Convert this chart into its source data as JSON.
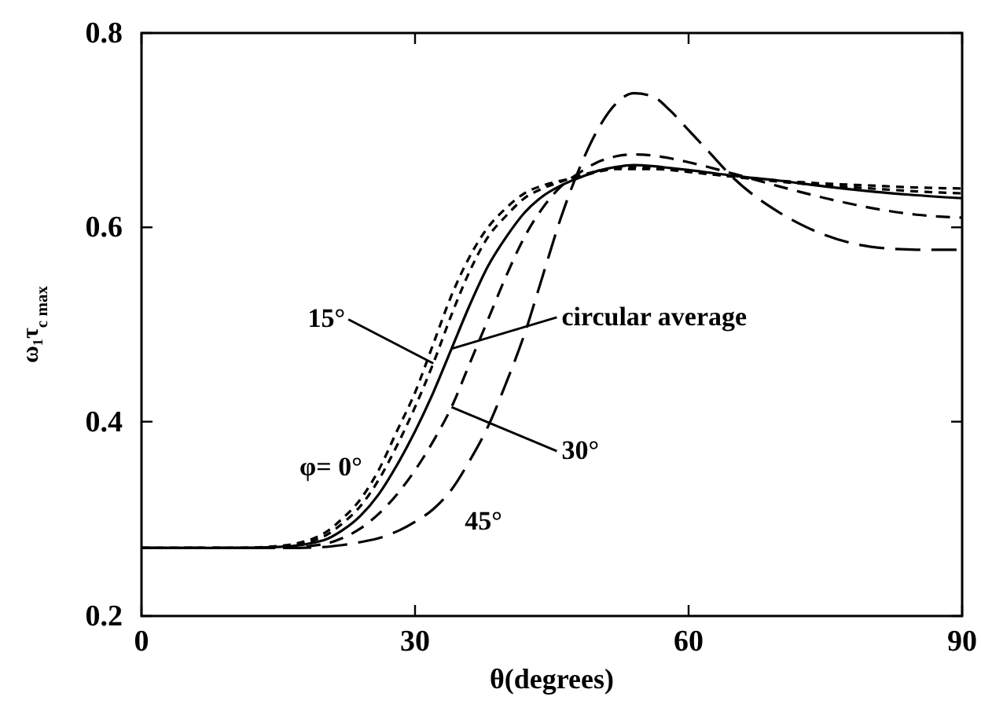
{
  "chart_data": {
    "type": "line",
    "xlabel": "θ(degrees)",
    "ylabel": "ω₁τ$_{c max}$",
    "xlim": [
      0,
      90
    ],
    "xticks": [
      0,
      30,
      60,
      90
    ],
    "ylim": [
      0.2,
      0.8
    ],
    "yticks": [
      {
        "value": 0.2,
        "label": "0.2"
      },
      {
        "value": 0.4,
        "label": "0.4"
      },
      {
        "value": 0.6,
        "label": "0.6"
      },
      {
        "value": 0.8,
        "label": "0.8"
      }
    ],
    "grid": false,
    "marker": "none",
    "annotations": [
      {
        "text": "φ= 0°",
        "x": 28,
        "y": 0.39
      },
      {
        "text": "15°",
        "x": 32,
        "y": 0.46
      },
      {
        "text": "circular average",
        "x": 34,
        "y": 0.475
      },
      {
        "text": "30°",
        "x": 34,
        "y": 0.415
      },
      {
        "text": "45°",
        "x": 32,
        "y": 0.31
      }
    ],
    "series": [
      {
        "color": "#000000",
        "line_style": "dashed",
        "x": [
          0,
          10,
          15,
          20,
          22,
          24,
          26,
          28,
          30,
          32,
          34,
          36,
          38,
          40,
          42,
          44,
          46,
          48,
          50,
          52,
          54,
          56,
          58,
          60,
          65,
          70,
          75,
          80,
          85,
          90
        ],
        "values": [
          0.27,
          0.27,
          0.272,
          0.285,
          0.3,
          0.32,
          0.35,
          0.39,
          0.43,
          0.48,
          0.53,
          0.57,
          0.6,
          0.62,
          0.635,
          0.643,
          0.648,
          0.652,
          0.657,
          0.66,
          0.66,
          0.66,
          0.659,
          0.657,
          0.652,
          0.648,
          0.645,
          0.643,
          0.641,
          0.64
        ]
      },
      {
        "color": "#000000",
        "line_style": "dashed",
        "x": [
          0,
          10,
          15,
          20,
          22,
          24,
          26,
          28,
          30,
          32,
          34,
          36,
          38,
          40,
          42,
          44,
          46,
          48,
          50,
          52,
          54,
          56,
          58,
          60,
          65,
          70,
          75,
          80,
          85,
          90
        ],
        "values": [
          0.27,
          0.27,
          0.271,
          0.282,
          0.295,
          0.313,
          0.34,
          0.375,
          0.415,
          0.46,
          0.51,
          0.555,
          0.59,
          0.612,
          0.63,
          0.64,
          0.647,
          0.653,
          0.658,
          0.661,
          0.662,
          0.661,
          0.66,
          0.658,
          0.652,
          0.647,
          0.643,
          0.64,
          0.637,
          0.635
        ]
      },
      {
        "color": "#000000",
        "line_style": "solid",
        "x": [
          0,
          10,
          15,
          20,
          22,
          24,
          26,
          28,
          30,
          32,
          34,
          36,
          38,
          40,
          42,
          44,
          46,
          48,
          50,
          52,
          54,
          56,
          58,
          60,
          65,
          70,
          75,
          80,
          85,
          90
        ],
        "values": [
          0.27,
          0.27,
          0.271,
          0.278,
          0.288,
          0.303,
          0.325,
          0.355,
          0.39,
          0.43,
          0.475,
          0.52,
          0.56,
          0.59,
          0.615,
          0.632,
          0.643,
          0.651,
          0.658,
          0.662,
          0.664,
          0.663,
          0.661,
          0.659,
          0.653,
          0.648,
          0.642,
          0.637,
          0.633,
          0.63
        ]
      },
      {
        "color": "#000000",
        "line_style": "dashed",
        "x": [
          0,
          10,
          15,
          20,
          22,
          24,
          26,
          28,
          30,
          32,
          34,
          36,
          38,
          40,
          42,
          44,
          46,
          48,
          50,
          52,
          54,
          56,
          58,
          60,
          65,
          70,
          75,
          80,
          85,
          90
        ],
        "values": [
          0.27,
          0.27,
          0.27,
          0.274,
          0.28,
          0.29,
          0.305,
          0.325,
          0.35,
          0.38,
          0.415,
          0.46,
          0.505,
          0.55,
          0.59,
          0.62,
          0.642,
          0.656,
          0.667,
          0.673,
          0.675,
          0.674,
          0.671,
          0.667,
          0.655,
          0.642,
          0.63,
          0.62,
          0.613,
          0.61
        ]
      },
      {
        "color": "#000000",
        "line_style": "dashed",
        "x": [
          0,
          10,
          15,
          20,
          22,
          24,
          26,
          28,
          30,
          32,
          34,
          36,
          38,
          40,
          42,
          44,
          46,
          48,
          50,
          52,
          54,
          56,
          58,
          60,
          62,
          65,
          70,
          75,
          80,
          85,
          90
        ],
        "values": [
          0.27,
          0.27,
          0.27,
          0.271,
          0.273,
          0.276,
          0.28,
          0.287,
          0.297,
          0.31,
          0.33,
          0.36,
          0.395,
          0.44,
          0.49,
          0.55,
          0.61,
          0.66,
          0.7,
          0.727,
          0.738,
          0.735,
          0.72,
          0.7,
          0.68,
          0.65,
          0.615,
          0.592,
          0.58,
          0.577,
          0.577
        ]
      }
    ]
  }
}
